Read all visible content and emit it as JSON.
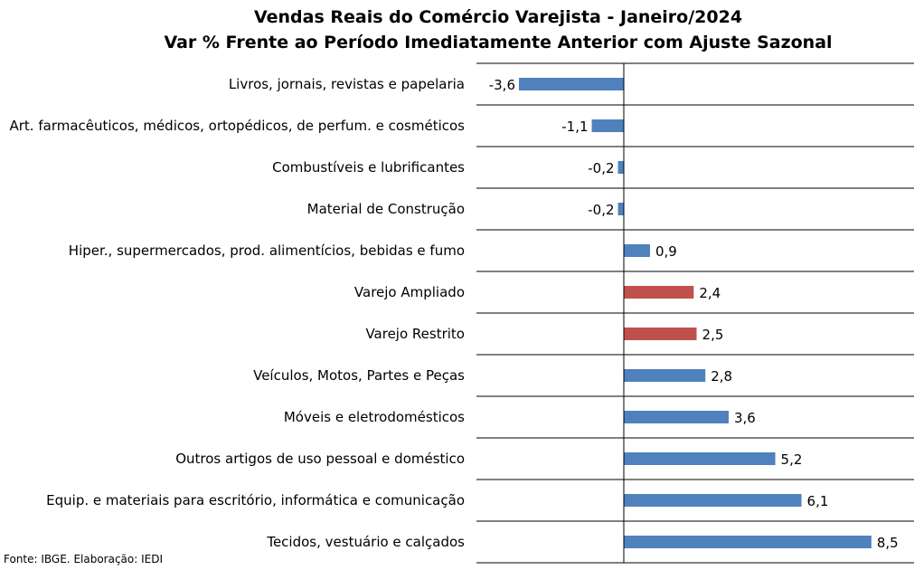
{
  "chart_data": {
    "type": "bar",
    "orientation": "horizontal",
    "title": "Vendas Reais do Comércio Varejista - Janeiro/2024",
    "subtitle": "Var % Frente ao Período Imediatamente Anterior com Ajuste Sazonal",
    "categories": [
      "Livros, jornais, revistas e papelaria",
      "Art. farmacêuticos, médicos, ortopédicos, de perfum. e cosméticos",
      "Combustíveis e lubrificantes",
      "Material de Construção",
      "Hiper., supermercados, prod. alimentícios, bebidas e fumo",
      "Varejo Ampliado",
      "Varejo Restrito",
      "Veículos, Motos, Partes e Peças",
      "Móveis e eletrodomésticos",
      "Outros artigos de uso pessoal e doméstico",
      "Equip. e materiais para escritório, informática e comunicação",
      "Tecidos, vestuário e calçados"
    ],
    "values": [
      -3.6,
      -1.1,
      -0.2,
      -0.2,
      0.9,
      2.4,
      2.5,
      2.8,
      3.6,
      5.2,
      6.1,
      8.5
    ],
    "value_labels": [
      "-3,6",
      "-1,1",
      "-0,2",
      "-0,2",
      "0,9",
      "2,4",
      "2,5",
      "2,8",
      "3,6",
      "5,2",
      "6,1",
      "8,5"
    ],
    "highlighted": [
      "Varejo Ampliado",
      "Varejo Restrito"
    ],
    "xlim": [
      -3.6,
      8.7
    ],
    "grid": "horizontal",
    "legend": "none",
    "colors": {
      "bar": "#4f81bd",
      "highlight": "#c0504d",
      "grid": "#000000"
    }
  },
  "source": "Fonte: IBGE. Elaboração: IEDI"
}
